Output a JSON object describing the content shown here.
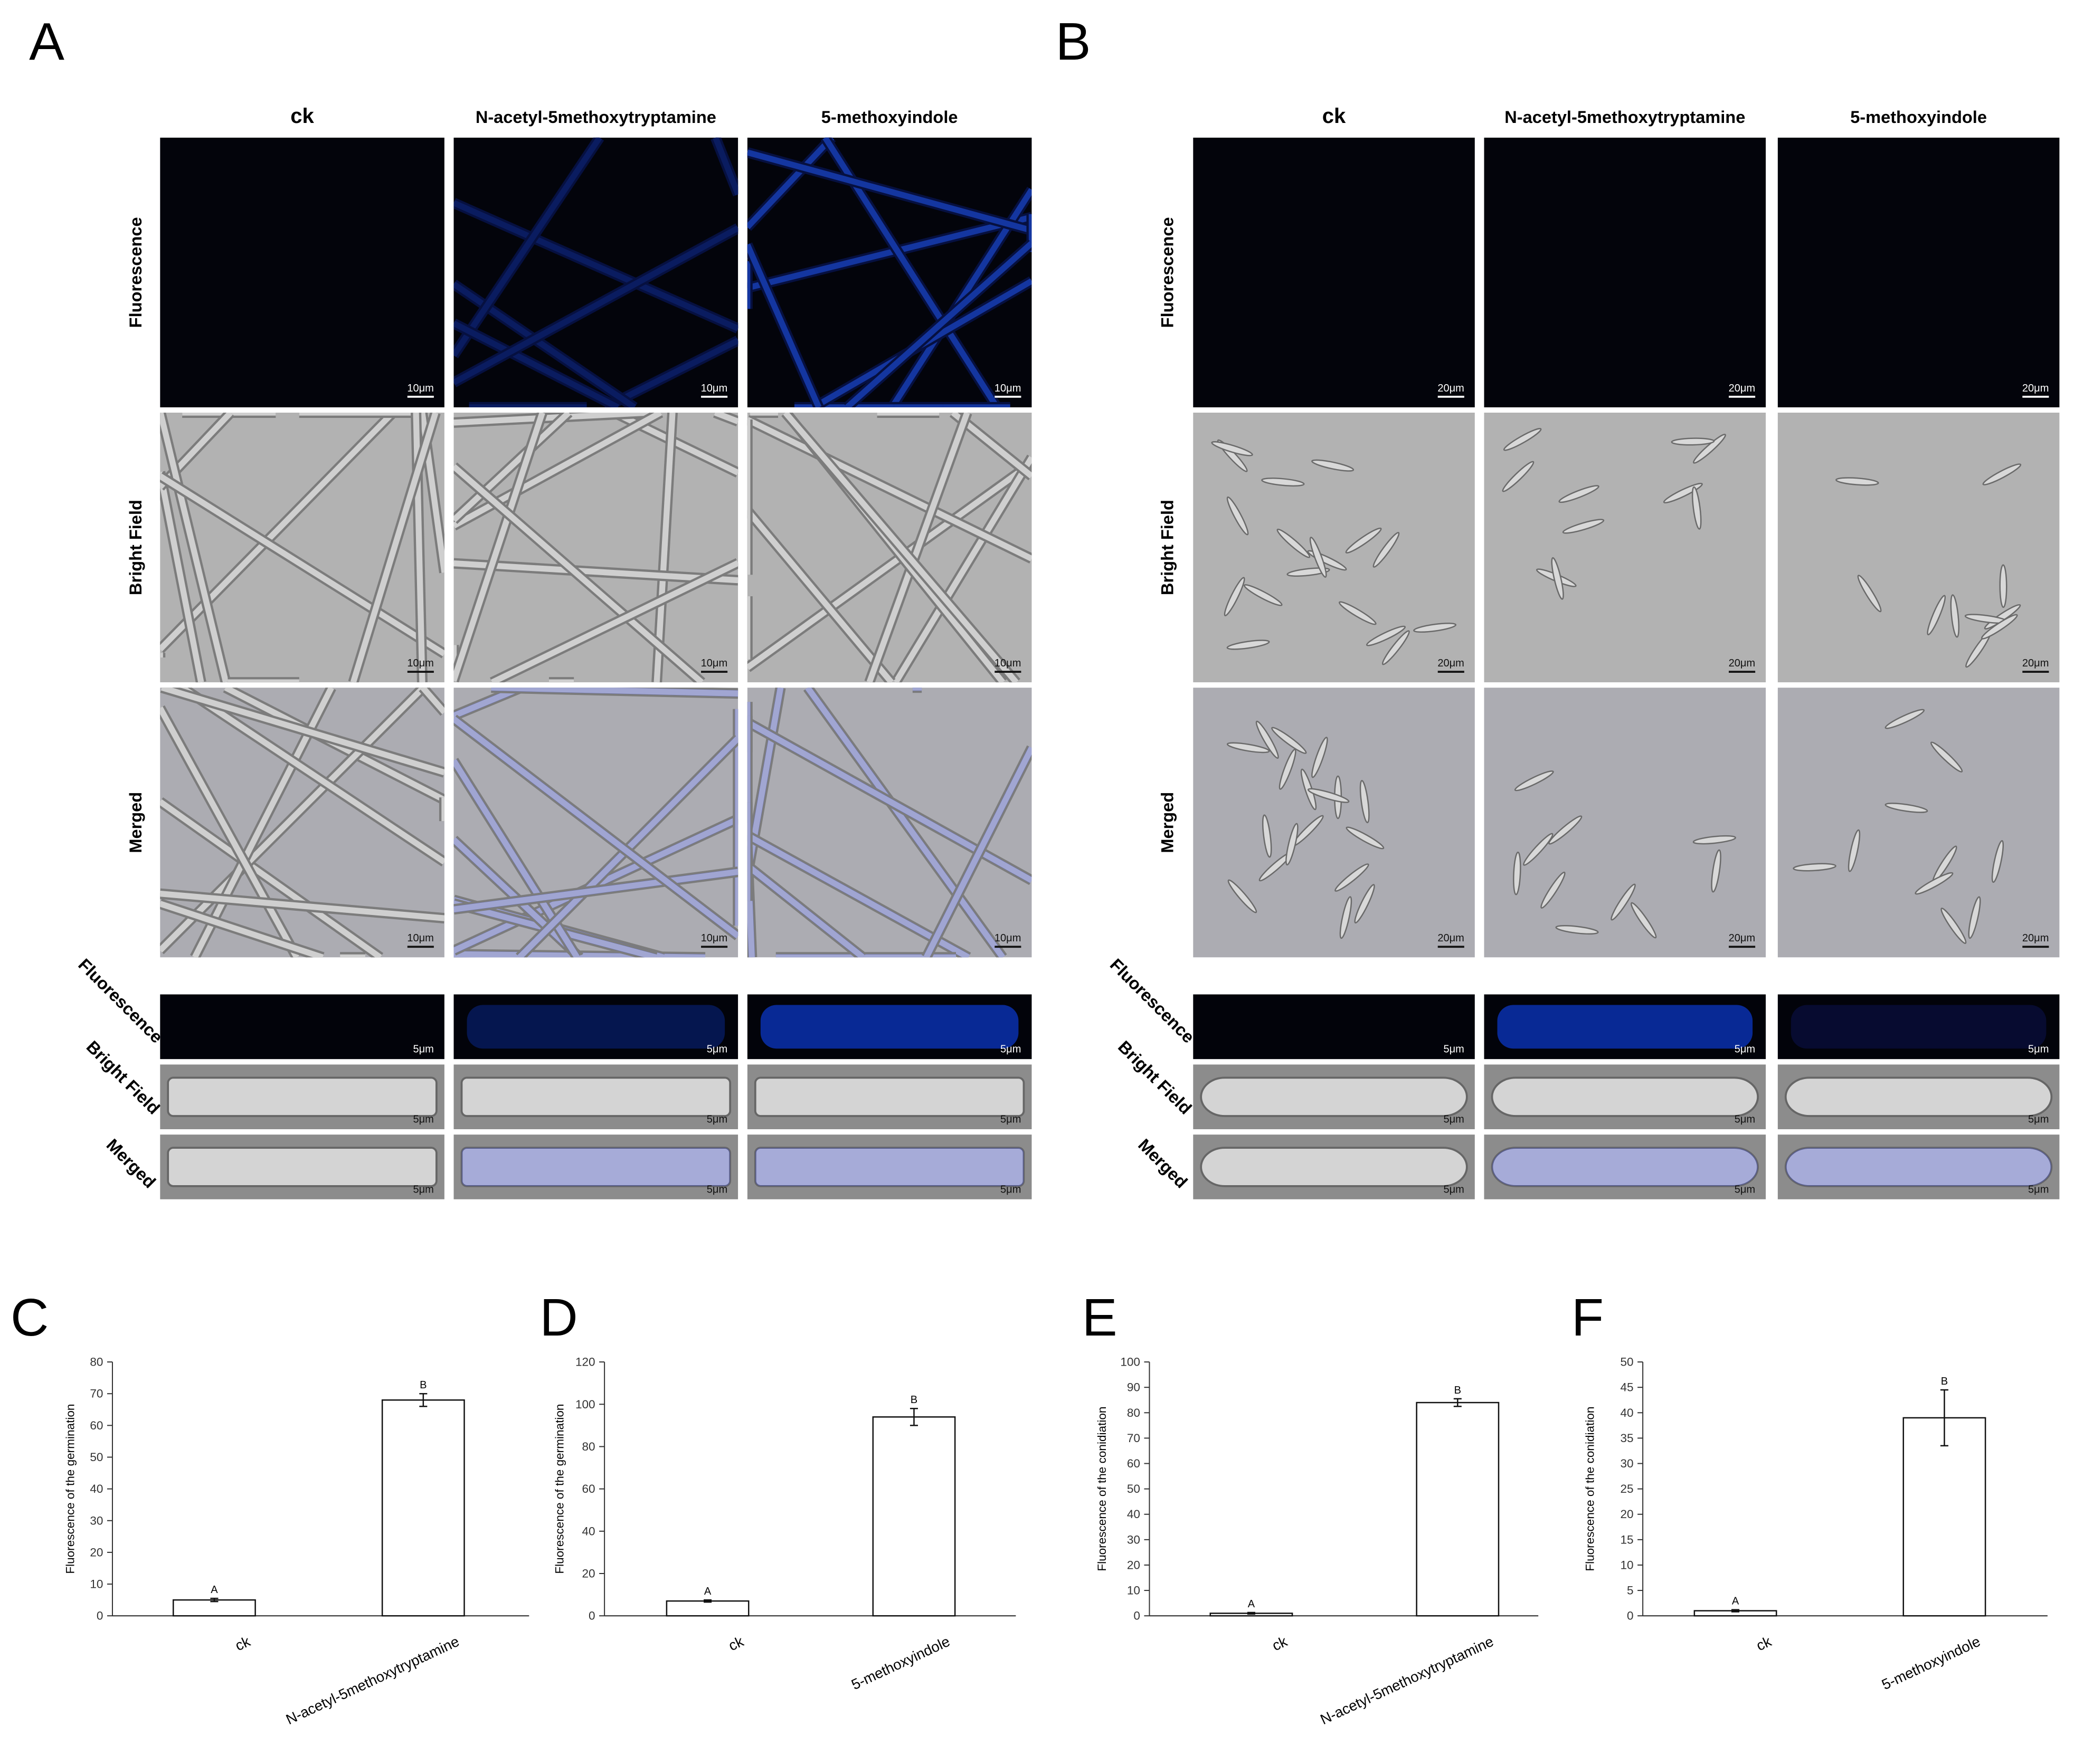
{
  "panel_a": {
    "label": "A",
    "columns": [
      "ck",
      "N-acetyl-5methoxytryptamine",
      "5-methoxyindole"
    ],
    "rows": [
      "Fluorescence",
      "Bright Field",
      "Merged"
    ],
    "scale_bar": "10μm",
    "strip_scale_bar": "5μm"
  },
  "panel_b": {
    "label": "B",
    "columns": [
      "ck",
      "N-acetyl-5methoxytryptamine",
      "5-methoxyindole"
    ],
    "rows": [
      "Fluorescence",
      "Bright Field",
      "Merged"
    ],
    "scale_bar": "20μm",
    "strip_scale_bar": "5μm"
  },
  "chart_data": [
    {
      "type": "bar",
      "panel_label": "C",
      "ylabel": "Fluorescence of the germination",
      "categories": [
        "ck",
        "N-acetyl-5methoxytryptamine"
      ],
      "values": [
        5,
        68
      ],
      "errors": [
        0.5,
        2
      ],
      "annotations": [
        "A",
        "B"
      ],
      "ylim": [
        0,
        80
      ],
      "yticks": [
        0,
        10,
        20,
        30,
        40,
        50,
        60,
        70,
        80
      ],
      "color": "#ffffff"
    },
    {
      "type": "bar",
      "panel_label": "D",
      "ylabel": "Fluorescence of the germination",
      "categories": [
        "ck",
        "5-methoxyindole"
      ],
      "values": [
        7,
        94
      ],
      "errors": [
        0.5,
        4
      ],
      "annotations": [
        "A",
        "B"
      ],
      "ylim": [
        0,
        120
      ],
      "yticks": [
        0,
        20,
        40,
        60,
        80,
        100,
        120
      ],
      "color": "#ffffff"
    },
    {
      "type": "bar",
      "panel_label": "E",
      "ylabel": "Fluorescence of the conidiation",
      "categories": [
        "ck",
        "N-acetyl-5methoxytryptamine"
      ],
      "values": [
        1,
        84
      ],
      "errors": [
        0.3,
        1.5
      ],
      "annotations": [
        "A",
        "B"
      ],
      "ylim": [
        0,
        100
      ],
      "yticks": [
        0,
        10,
        20,
        30,
        40,
        50,
        60,
        70,
        80,
        90,
        100
      ],
      "color": "#ffffff"
    },
    {
      "type": "bar",
      "panel_label": "F",
      "ylabel": "Fluorescence of the conidiation",
      "categories": [
        "ck",
        "5-methoxyindole"
      ],
      "values": [
        1,
        39
      ],
      "errors": [
        0.2,
        5.5
      ],
      "annotations": [
        "A",
        "B"
      ],
      "ylim": [
        0,
        50
      ],
      "yticks": [
        0,
        5,
        10,
        15,
        20,
        25,
        30,
        35,
        40,
        45,
        50
      ],
      "color": "#ffffff"
    }
  ]
}
